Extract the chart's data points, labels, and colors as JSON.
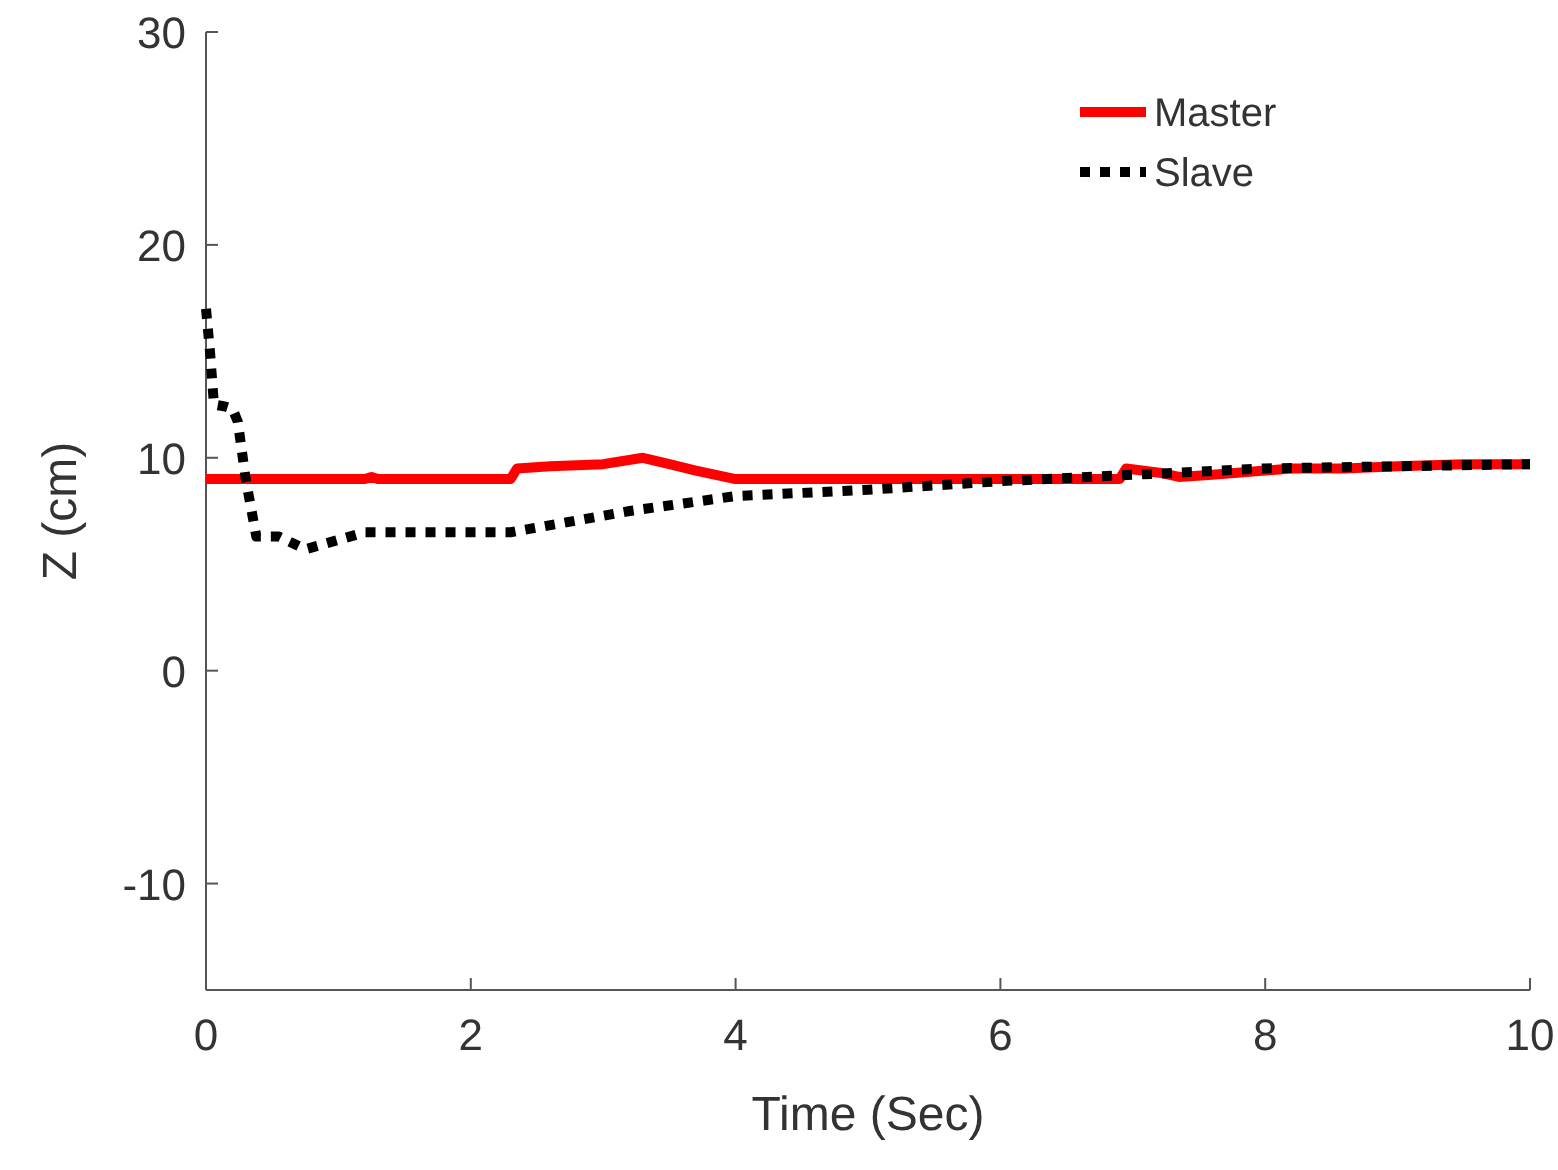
{
  "chart_data": {
    "type": "line",
    "xlabel": "Time (Sec)",
    "ylabel": "Z (cm)",
    "xlim": [
      0,
      10
    ],
    "ylim": [
      -15,
      30
    ],
    "xticks": [
      0,
      2,
      4,
      6,
      8,
      10
    ],
    "yticks": [
      -10,
      0,
      10,
      20,
      30
    ],
    "grid": false,
    "legend": "top right",
    "series": [
      {
        "name": "Master",
        "color": "#ff0000",
        "line_style": "solid",
        "x": [
          0,
          1.2,
          1.25,
          1.3,
          2.3,
          2.35,
          2.6,
          3,
          3.3,
          3.5,
          3.7,
          3.85,
          4,
          5,
          6,
          6.9,
          6.95,
          7.2,
          7.35,
          7.6,
          8.2,
          8.6,
          9,
          9.5,
          10
        ],
        "values": [
          9,
          9,
          9.1,
          9,
          9,
          9.5,
          9.6,
          9.7,
          10,
          9.7,
          9.4,
          9.2,
          9,
          9,
          9,
          9,
          9.5,
          9.3,
          9.1,
          9.2,
          9.5,
          9.5,
          9.6,
          9.7,
          9.7
        ]
      },
      {
        "name": "Slave",
        "color": "#000000",
        "line_style": "dotted",
        "x": [
          0,
          0.03,
          0.06,
          0.15,
          0.2,
          0.24,
          0.3,
          0.38,
          0.55,
          0.75,
          1.2,
          2.3,
          3.2,
          4,
          5,
          6,
          7,
          8,
          9,
          10
        ],
        "values": [
          17,
          15,
          12.5,
          12.4,
          12.3,
          11.7,
          9,
          6.3,
          6.3,
          5.7,
          6.5,
          6.5,
          7.5,
          8.2,
          8.5,
          8.9,
          9.2,
          9.5,
          9.6,
          9.7
        ]
      }
    ]
  }
}
